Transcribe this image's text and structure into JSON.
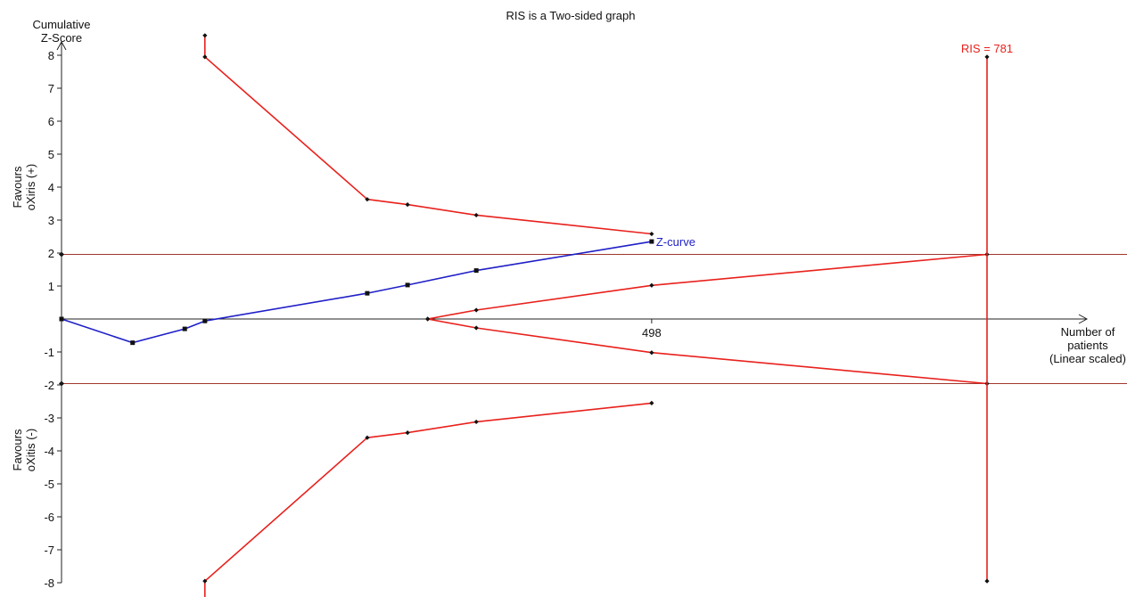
{
  "chart_data": {
    "type": "line",
    "title": "RIS is a Two-sided graph",
    "ylabel_lines": [
      "Cumulative",
      "Z-Score"
    ],
    "xlabel_lines": [
      "Number of",
      "patients",
      "(Linear scaled)"
    ],
    "favours_top_lines": [
      "Favours",
      "oXiris (+)"
    ],
    "favours_bottom_lines": [
      "Favours",
      "oXitis (-)"
    ],
    "xlim": [
      0,
      900
    ],
    "ylim": [
      -8,
      8
    ],
    "y_ticks": [
      {
        "value": 8,
        "label": "8"
      },
      {
        "value": 7,
        "label": "7"
      },
      {
        "value": 6,
        "label": "6"
      },
      {
        "value": 5,
        "label": "5"
      },
      {
        "value": 4,
        "label": "4"
      },
      {
        "value": 3,
        "label": "3"
      },
      {
        "value": 2,
        "label": "2"
      },
      {
        "value": 1,
        "label": "1"
      },
      {
        "value": -1,
        "label": "-1"
      },
      {
        "value": -2,
        "label": "-2"
      },
      {
        "value": -3,
        "label": "-3"
      },
      {
        "value": -4,
        "label": "-4"
      },
      {
        "value": -5,
        "label": "-5"
      },
      {
        "value": -6,
        "label": "-6"
      },
      {
        "value": -7,
        "label": "-7"
      },
      {
        "value": -8,
        "label": "-8"
      }
    ],
    "x_ticks": [
      {
        "value": 498,
        "label": "498"
      }
    ],
    "conventional_boundaries": [
      1.96,
      -1.96
    ],
    "series": [
      {
        "name": "Z-curve",
        "color": "#1f1fc8",
        "marker": "square",
        "points": [
          [
            0,
            0
          ],
          [
            60,
            -0.72
          ],
          [
            104,
            -0.3
          ],
          [
            121,
            -0.06
          ],
          [
            258,
            0.78
          ],
          [
            292,
            1.03
          ],
          [
            350,
            1.47
          ],
          [
            498,
            2.35
          ]
        ]
      },
      {
        "role": "upper-monitoring-boundary",
        "color": "#e8211c",
        "marker": "diamond",
        "points": [
          [
            121,
            8.6
          ],
          [
            121,
            7.95
          ],
          [
            258,
            3.63
          ],
          [
            292,
            3.47
          ],
          [
            350,
            3.15
          ],
          [
            498,
            2.58
          ]
        ]
      },
      {
        "role": "lower-monitoring-boundary",
        "color": "#e8211c",
        "marker": "diamond",
        "points": [
          [
            121,
            -8.6
          ],
          [
            121,
            -7.95
          ],
          [
            258,
            -3.6
          ],
          [
            292,
            -3.45
          ],
          [
            350,
            -3.12
          ],
          [
            498,
            -2.55
          ]
        ]
      },
      {
        "role": "upper-futility-boundary",
        "color": "#e8211c",
        "marker": "diamond",
        "points": [
          [
            309,
            0
          ],
          [
            350,
            0.27
          ],
          [
            498,
            1.02
          ],
          [
            781,
            1.96
          ]
        ]
      },
      {
        "role": "lower-futility-boundary",
        "color": "#e8211c",
        "marker": "diamond",
        "points": [
          [
            309,
            0
          ],
          [
            350,
            -0.27
          ],
          [
            498,
            -1.02
          ],
          [
            781,
            -1.96
          ]
        ]
      },
      {
        "role": "ris-line",
        "color": "#e8211c",
        "marker": "diamond",
        "points": [
          [
            781,
            7.95
          ],
          [
            781,
            -7.95
          ]
        ]
      }
    ],
    "annotations": [
      {
        "text": "Z-curve",
        "color": "#1f1fc8",
        "x": 498,
        "y": 2.35
      },
      {
        "text": "RIS = 781",
        "color": "#e8211c",
        "x": 781,
        "y": 7.95
      }
    ],
    "colors": {
      "boundary": "#e8211c",
      "zcurve": "#1f1fc8",
      "conventional": "#a0372e",
      "axis": "#222222"
    }
  }
}
